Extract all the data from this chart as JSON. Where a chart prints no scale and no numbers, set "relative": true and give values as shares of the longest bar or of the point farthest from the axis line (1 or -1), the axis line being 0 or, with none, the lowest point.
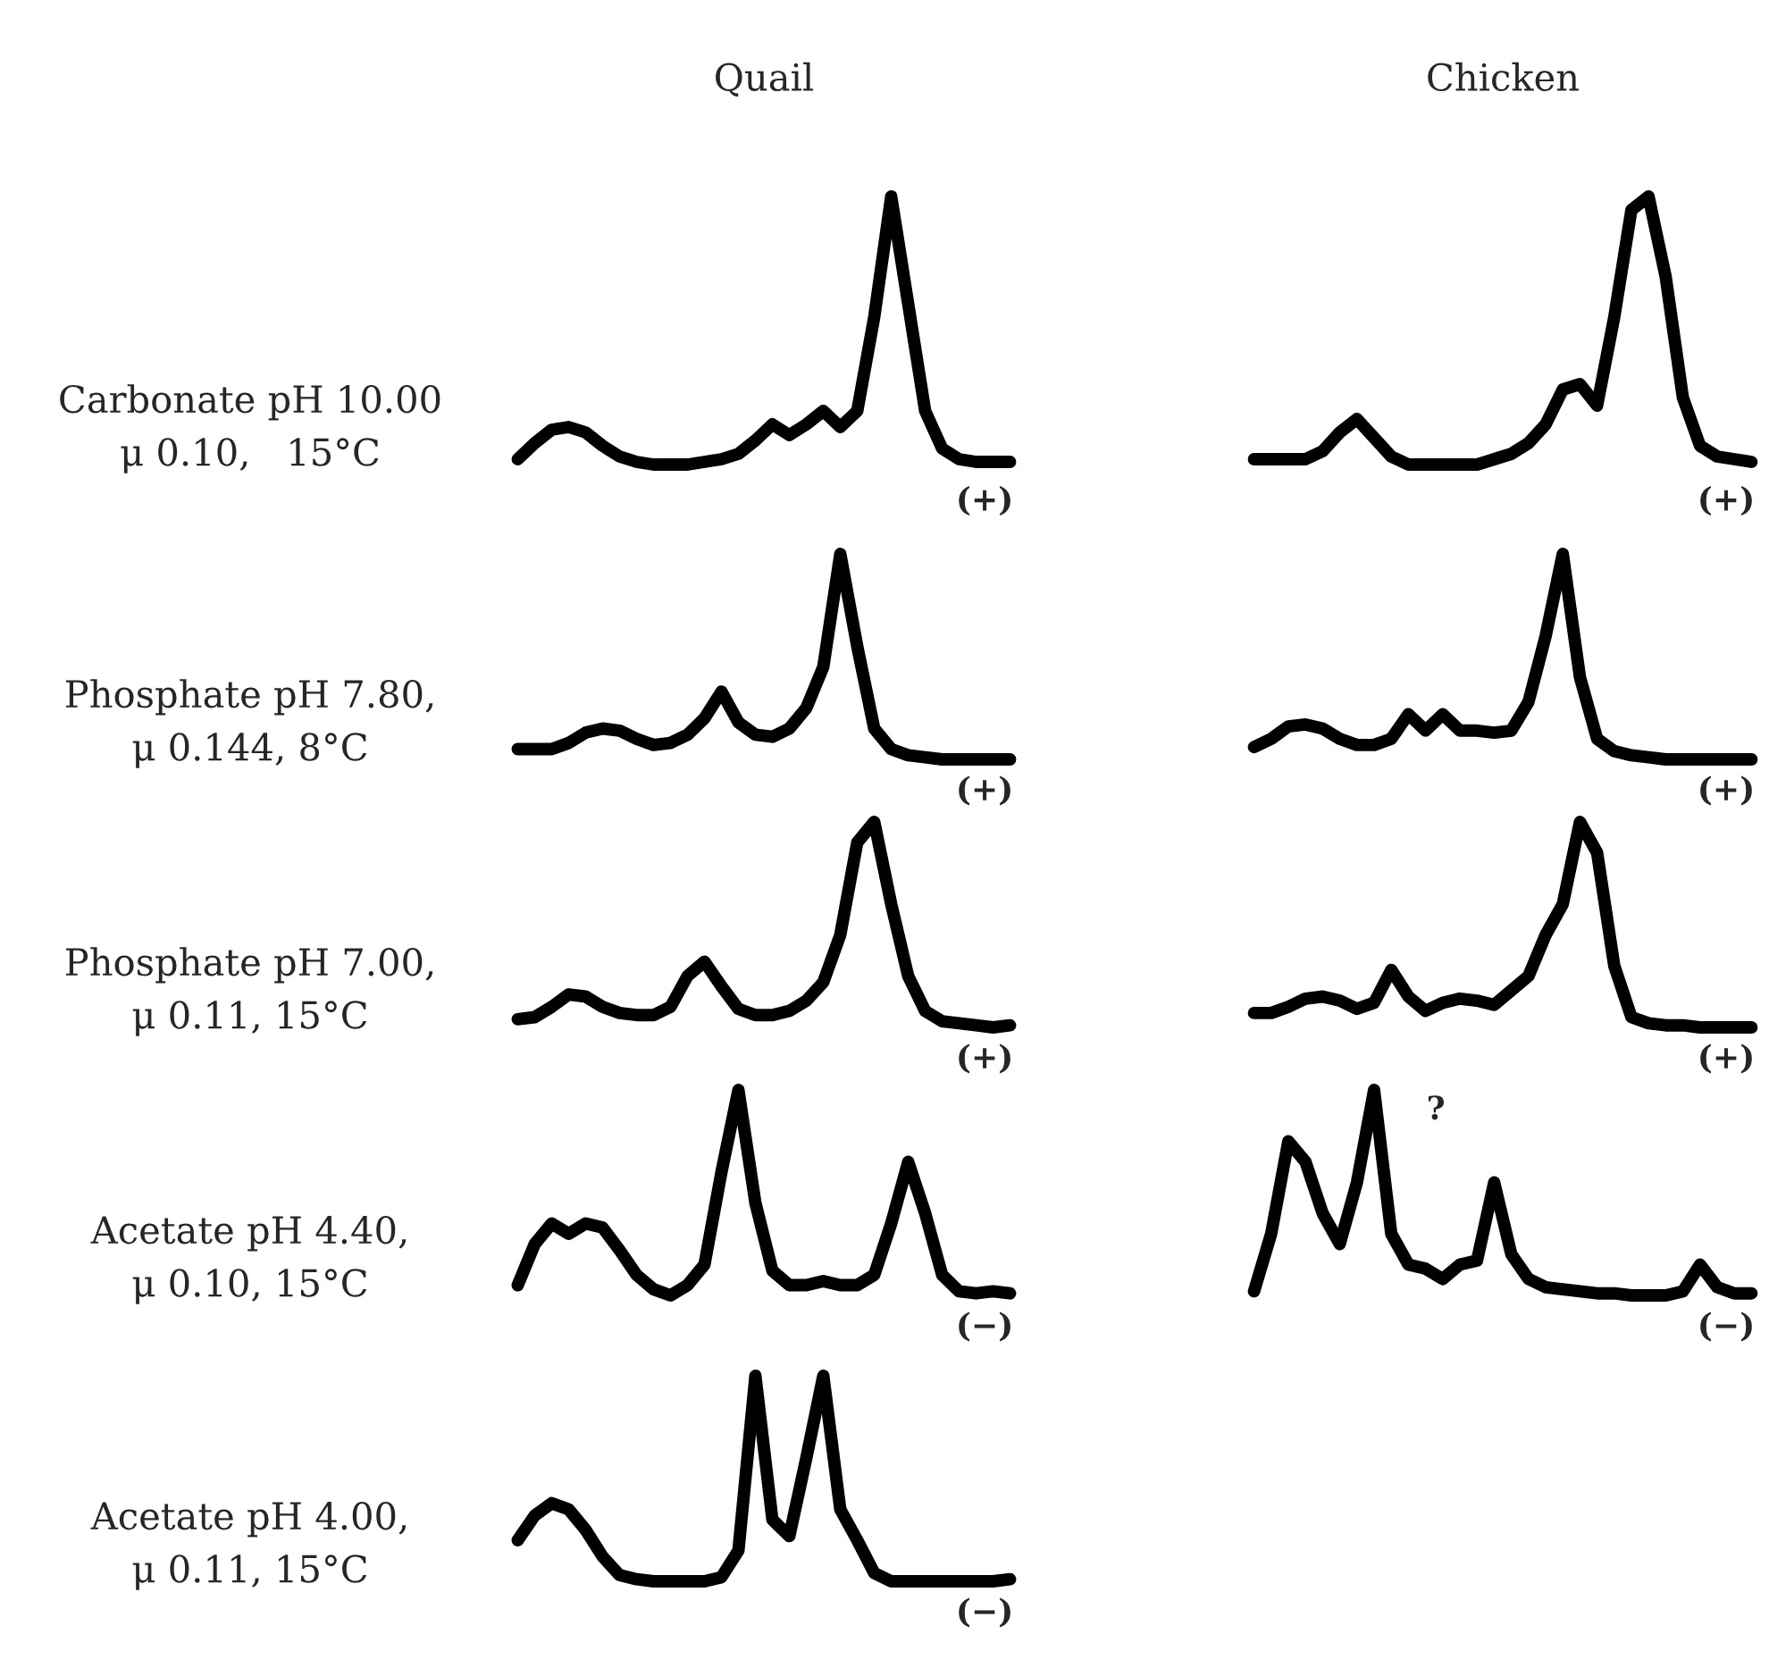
{
  "chart_data": [
    {
      "type": "line",
      "relative": true,
      "title": "Quail",
      "ylabel": "Carbonate pH 10.00\nμ 0.10,   15°C",
      "annotations": [
        "(+)"
      ],
      "categories": [
        null,
        null,
        null,
        null,
        null,
        null,
        null,
        null,
        null,
        null,
        null,
        null,
        null,
        null,
        null,
        null,
        null,
        null,
        null,
        null,
        null,
        null,
        null,
        null,
        null,
        null,
        null,
        null,
        null,
        null
      ],
      "series": [
        {
          "color": "#000000",
          "values": [
            0.02,
            0.08,
            0.13,
            0.14,
            0.12,
            0.07,
            0.03,
            0.01,
            0,
            0,
            0,
            0.01,
            0.02,
            0.04,
            0.09,
            0.15,
            0.11,
            0.15,
            0.2,
            0.14,
            0.2,
            0.55,
            1,
            0.6,
            0.2,
            0.06,
            0.02,
            0.01,
            0.01,
            0.01
          ]
        }
      ]
    },
    {
      "type": "line",
      "relative": true,
      "title": "Chicken",
      "annotations": [
        "(+)"
      ],
      "categories": [
        null,
        null,
        null,
        null,
        null,
        null,
        null,
        null,
        null,
        null,
        null,
        null,
        null,
        null,
        null,
        null,
        null,
        null,
        null,
        null,
        null,
        null,
        null,
        null,
        null,
        null,
        null,
        null,
        null,
        null
      ],
      "series": [
        {
          "color": "#000000",
          "values": [
            0.02,
            0.02,
            0.02,
            0.02,
            0.05,
            0.12,
            0.17,
            0.1,
            0.03,
            0,
            0,
            0,
            0,
            0,
            0.02,
            0.04,
            0.08,
            0.15,
            0.28,
            0.3,
            0.22,
            0.55,
            0.95,
            1,
            0.7,
            0.25,
            0.07,
            0.03,
            0.02,
            0.01
          ]
        }
      ]
    },
    {
      "type": "line",
      "relative": true,
      "ylabel": "Phosphate pH 7.80,\nμ 0.144, 8°C",
      "annotations": [
        "(+)"
      ],
      "categories": [
        null,
        null,
        null,
        null,
        null,
        null,
        null,
        null,
        null,
        null,
        null,
        null,
        null,
        null,
        null,
        null,
        null,
        null,
        null,
        null,
        null,
        null,
        null,
        null,
        null,
        null,
        null,
        null,
        null,
        null
      ],
      "series": [
        {
          "color": "#000000",
          "values": [
            0.05,
            0.05,
            0.05,
            0.08,
            0.13,
            0.15,
            0.14,
            0.1,
            0.07,
            0.08,
            0.12,
            0.2,
            0.33,
            0.18,
            0.12,
            0.11,
            0.15,
            0.25,
            0.45,
            1,
            0.55,
            0.15,
            0.05,
            0.02,
            0.01,
            0,
            0,
            0,
            0,
            0
          ]
        }
      ]
    },
    {
      "type": "line",
      "relative": true,
      "annotations": [
        "(+)"
      ],
      "categories": [
        null,
        null,
        null,
        null,
        null,
        null,
        null,
        null,
        null,
        null,
        null,
        null,
        null,
        null,
        null,
        null,
        null,
        null,
        null,
        null,
        null,
        null,
        null,
        null,
        null,
        null,
        null,
        null,
        null,
        null
      ],
      "series": [
        {
          "color": "#000000",
          "values": [
            0.06,
            0.1,
            0.16,
            0.17,
            0.15,
            0.1,
            0.07,
            0.07,
            0.1,
            0.22,
            0.14,
            0.22,
            0.14,
            0.14,
            0.13,
            0.14,
            0.28,
            0.6,
            1,
            0.4,
            0.1,
            0.04,
            0.02,
            0.01,
            0,
            0,
            0,
            0,
            0,
            0
          ]
        }
      ]
    },
    {
      "type": "line",
      "relative": true,
      "ylabel": "Phosphate pH 7.00,\nμ 0.11, 15°C",
      "annotations": [
        "(+)"
      ],
      "categories": [
        null,
        null,
        null,
        null,
        null,
        null,
        null,
        null,
        null,
        null,
        null,
        null,
        null,
        null,
        null,
        null,
        null,
        null,
        null,
        null,
        null,
        null,
        null,
        null,
        null,
        null,
        null,
        null,
        null,
        null
      ],
      "series": [
        {
          "color": "#000000",
          "values": [
            0.04,
            0.05,
            0.1,
            0.16,
            0.15,
            0.1,
            0.07,
            0.06,
            0.06,
            0.1,
            0.25,
            0.32,
            0.2,
            0.09,
            0.06,
            0.06,
            0.08,
            0.13,
            0.22,
            0.45,
            0.9,
            1,
            0.6,
            0.25,
            0.08,
            0.03,
            0.02,
            0.01,
            0,
            0.01
          ]
        }
      ]
    },
    {
      "type": "line",
      "relative": true,
      "annotations": [
        "(+)"
      ],
      "categories": [
        null,
        null,
        null,
        null,
        null,
        null,
        null,
        null,
        null,
        null,
        null,
        null,
        null,
        null,
        null,
        null,
        null,
        null,
        null,
        null,
        null,
        null,
        null,
        null,
        null,
        null,
        null,
        null,
        null,
        null
      ],
      "series": [
        {
          "color": "#000000",
          "values": [
            0.07,
            0.07,
            0.1,
            0.14,
            0.15,
            0.13,
            0.09,
            0.12,
            0.28,
            0.15,
            0.08,
            0.12,
            0.14,
            0.13,
            0.11,
            0.18,
            0.25,
            0.45,
            0.6,
            1,
            0.85,
            0.3,
            0.05,
            0.02,
            0.01,
            0.01,
            0,
            0,
            0,
            0
          ]
        }
      ]
    },
    {
      "type": "line",
      "relative": true,
      "ylabel": "Acetate pH 4.40,\nμ 0.10, 15°C",
      "annotations": [
        "(−)"
      ],
      "categories": [
        null,
        null,
        null,
        null,
        null,
        null,
        null,
        null,
        null,
        null,
        null,
        null,
        null,
        null,
        null,
        null,
        null,
        null,
        null,
        null,
        null,
        null,
        null,
        null,
        null,
        null,
        null,
        null,
        null,
        null
      ],
      "series": [
        {
          "color": "#000000",
          "values": [
            0.05,
            0.25,
            0.35,
            0.3,
            0.35,
            0.33,
            0.22,
            0.1,
            0.03,
            0,
            0.05,
            0.15,
            0.6,
            1,
            0.45,
            0.12,
            0.05,
            0.05,
            0.07,
            0.05,
            0.05,
            0.1,
            0.35,
            0.65,
            0.4,
            0.1,
            0.02,
            0.01,
            0.02,
            0.01
          ]
        }
      ]
    },
    {
      "type": "line",
      "relative": true,
      "annotations": [
        "?",
        "(−)"
      ],
      "categories": [
        null,
        null,
        null,
        null,
        null,
        null,
        null,
        null,
        null,
        null,
        null,
        null,
        null,
        null,
        null,
        null,
        null,
        null,
        null,
        null,
        null,
        null,
        null,
        null,
        null,
        null,
        null,
        null,
        null,
        null
      ],
      "series": [
        {
          "color": "#000000",
          "values": [
            0.02,
            0.3,
            0.75,
            0.65,
            0.4,
            0.25,
            0.55,
            1,
            0.3,
            0.15,
            0.13,
            0.08,
            0.15,
            0.17,
            0.55,
            0.2,
            0.08,
            0.04,
            0.03,
            0.02,
            0.01,
            0.01,
            0,
            0,
            0,
            0.02,
            0.15,
            0.04,
            0.01,
            0.01
          ]
        }
      ]
    },
    {
      "type": "line",
      "relative": true,
      "ylabel": "Acetate pH 4.00,\nμ 0.11, 15°C",
      "annotations": [
        "(−)"
      ],
      "categories": [
        null,
        null,
        null,
        null,
        null,
        null,
        null,
        null,
        null,
        null,
        null,
        null,
        null,
        null,
        null,
        null,
        null,
        null,
        null,
        null,
        null,
        null,
        null,
        null,
        null,
        null,
        null,
        null,
        null,
        null
      ],
      "series": [
        {
          "color": "#000000",
          "values": [
            0.2,
            0.32,
            0.38,
            0.35,
            0.25,
            0.12,
            0.03,
            0.01,
            0,
            0,
            0,
            0,
            0.02,
            0.15,
            1,
            0.3,
            0.22,
            0.6,
            1,
            0.35,
            0.2,
            0.04,
            0,
            0,
            0,
            0,
            0,
            0,
            0,
            0.01
          ]
        }
      ]
    }
  ]
}
